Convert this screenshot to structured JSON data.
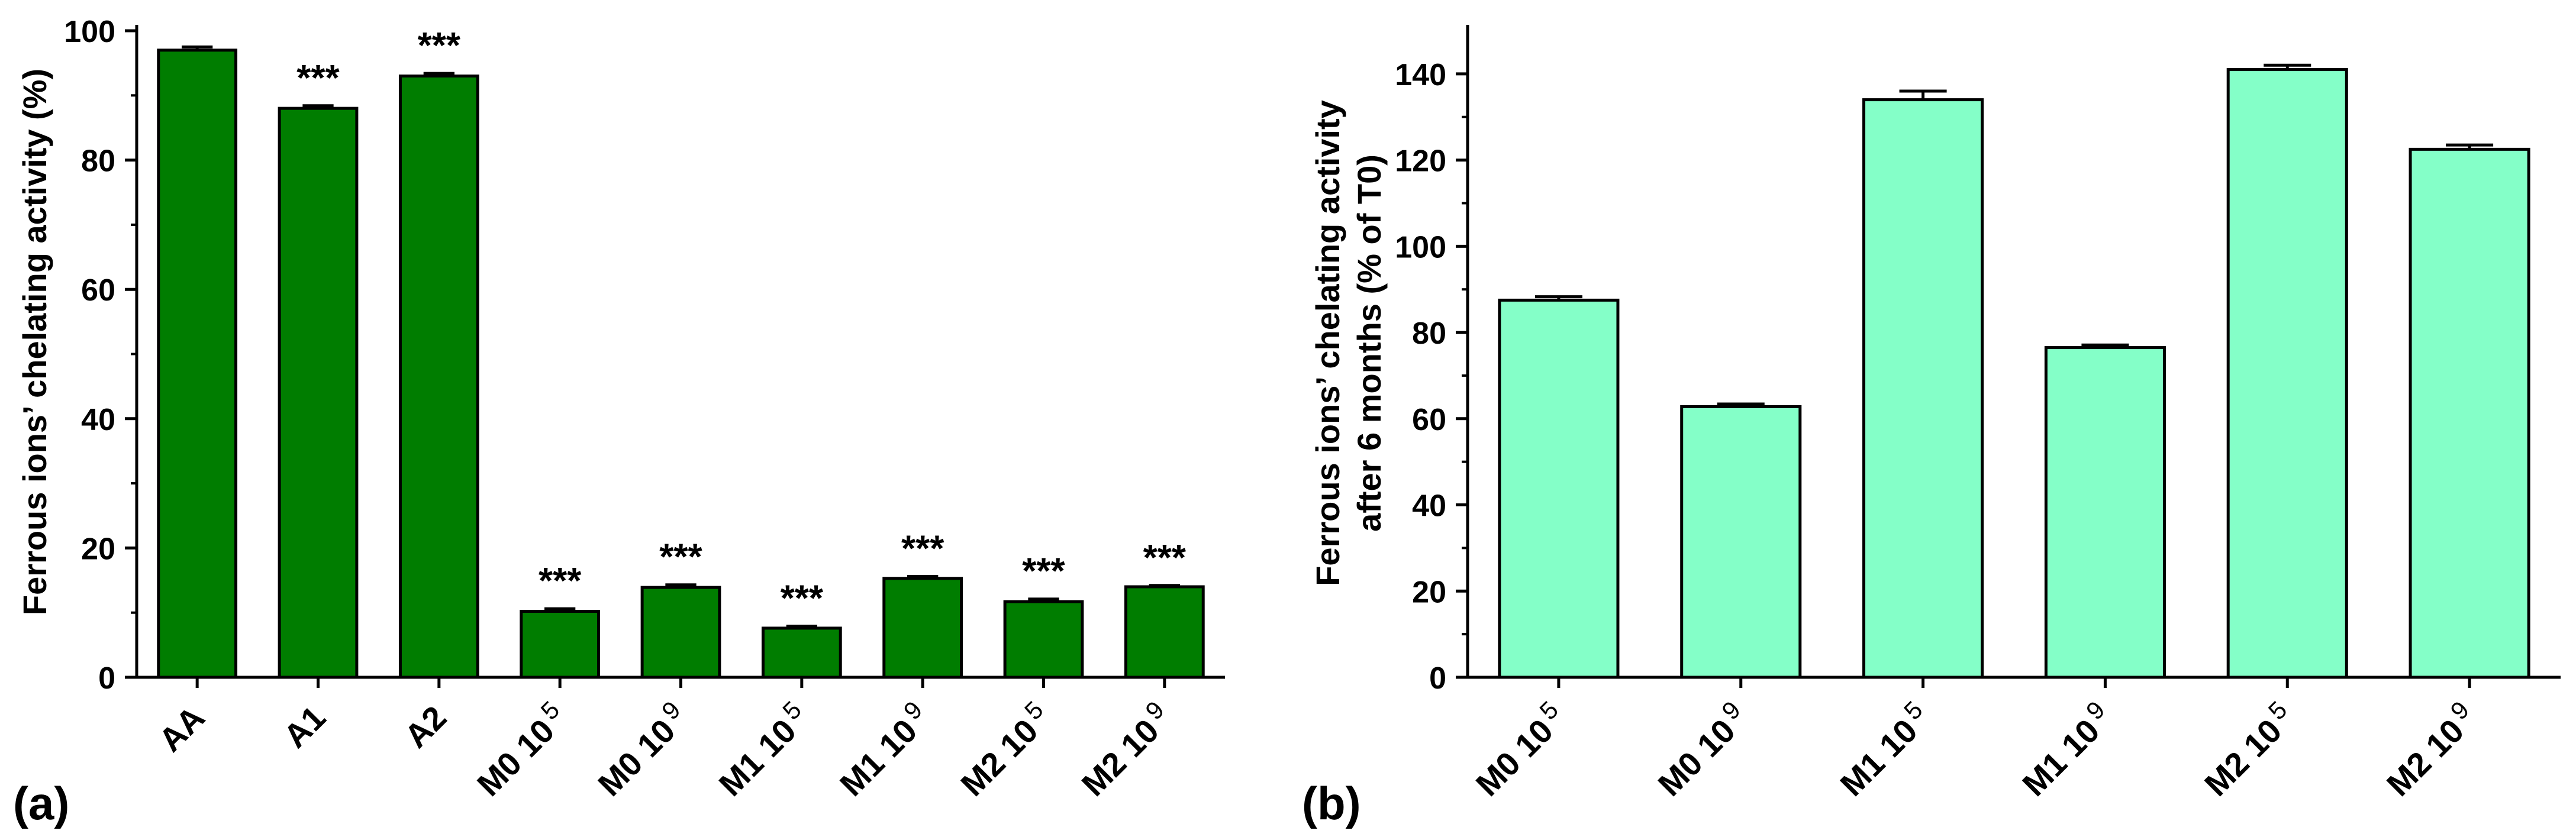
{
  "colors": {
    "panel_a_fill": "#007d00",
    "panel_b_fill": "#84ffc8",
    "stroke": "#000000"
  },
  "chart_data": [
    {
      "type": "bar",
      "panel_label": "(a)",
      "ylabel": "Ferrous ions’ chelating activity (%)",
      "xlabel": "",
      "ylim": [
        0,
        100
      ],
      "yticks": [
        0,
        20,
        40,
        60,
        80,
        100
      ],
      "yminor_step": 10,
      "categories": [
        {
          "main": "AA",
          "sup": ""
        },
        {
          "main": "A1",
          "sup": ""
        },
        {
          "main": "A2",
          "sup": ""
        },
        {
          "main": "M0 10",
          "sup": "5"
        },
        {
          "main": "M0 10",
          "sup": "9"
        },
        {
          "main": "M1 10",
          "sup": "5"
        },
        {
          "main": "M1 10",
          "sup": "9"
        },
        {
          "main": "M2 10",
          "sup": "5"
        },
        {
          "main": "M2 10",
          "sup": "9"
        }
      ],
      "values": [
        97.0,
        88.0,
        93.0,
        10.2,
        13.9,
        7.6,
        15.3,
        11.7,
        14.0
      ],
      "errors": [
        0.5,
        0.4,
        0.4,
        0.4,
        0.4,
        0.3,
        0.3,
        0.4,
        0.2
      ],
      "annotations": [
        "",
        "***",
        "***",
        "***",
        "***",
        "***",
        "***",
        "***",
        "***"
      ],
      "grid": false
    },
    {
      "type": "bar",
      "panel_label": "(b)",
      "ylabel": "Ferrous ions’ chelating activity",
      "ylabel2": "after 6 months (% of T0)",
      "xlabel": "",
      "ylim": [
        0,
        150
      ],
      "yticks": [
        0,
        20,
        40,
        60,
        80,
        100,
        120,
        140
      ],
      "yminor_step": 10,
      "categories": [
        {
          "main": "M0 10",
          "sup": "5"
        },
        {
          "main": "M0 10",
          "sup": "9"
        },
        {
          "main": "M1 10",
          "sup": "5"
        },
        {
          "main": "M1 10",
          "sup": "9"
        },
        {
          "main": "M2 10",
          "sup": "5"
        },
        {
          "main": "M2 10",
          "sup": "9"
        }
      ],
      "values": [
        87.5,
        62.8,
        134.0,
        76.5,
        141.0,
        122.5
      ],
      "errors": [
        0.8,
        0.6,
        2.0,
        0.6,
        1.0,
        1.0
      ],
      "annotations": [
        "",
        "",
        "",
        "",
        "",
        ""
      ],
      "grid": false
    }
  ]
}
